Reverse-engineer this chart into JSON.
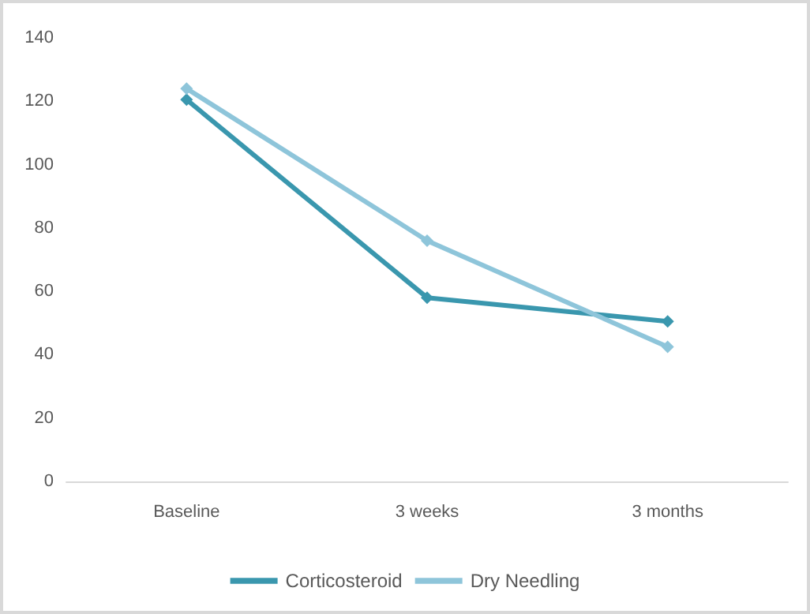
{
  "chart_data": {
    "type": "line",
    "categories": [
      "Baseline",
      "3 weeks",
      "3 months"
    ],
    "series": [
      {
        "name": "Corticosteroid",
        "color": "#3a97ae",
        "values": [
          120.5,
          58,
          50.5
        ]
      },
      {
        "name": "Dry Needling",
        "color": "#8ec5da",
        "values": [
          124,
          76,
          42.5
        ]
      }
    ],
    "ylim": [
      0,
      140
    ],
    "yticks": [
      0,
      20,
      40,
      60,
      80,
      100,
      120,
      140
    ],
    "grid": false,
    "legend": "bottom",
    "marker": "diamond",
    "line_style": "solid"
  }
}
